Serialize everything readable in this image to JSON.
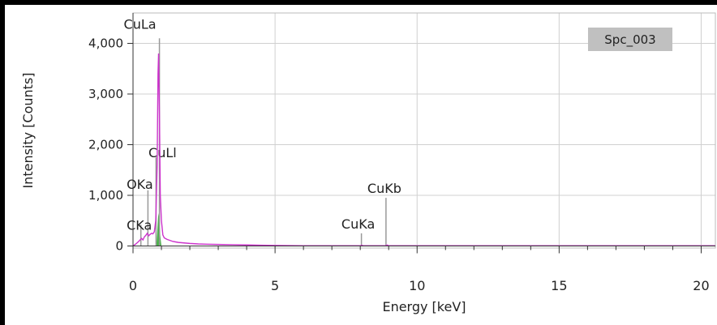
{
  "chart_data": {
    "type": "line",
    "title": "",
    "legend_label": "Spc_003",
    "legend_position": "top-right",
    "xlabel": "Energy [keV]",
    "ylabel": "Intensity [Counts]",
    "xlim": [
      0,
      20.5
    ],
    "ylim": [
      -40,
      4600
    ],
    "grid": true,
    "x_ticks": [
      0,
      5,
      10,
      15,
      20
    ],
    "x_tick_labels": [
      "0",
      "5",
      "10",
      "15",
      "20"
    ],
    "y_ticks": [
      0,
      1000,
      2000,
      3000,
      4000
    ],
    "y_tick_labels": [
      "0",
      "1,000",
      "2,000",
      "3,000",
      "4,000"
    ],
    "colors": {
      "spectrum": "#cc33cc",
      "peak_fill": "#33aa33",
      "marker": "#999999",
      "grid": "#d0d0d0",
      "legend_bg": "#c0c0c0",
      "axis": "#333333"
    },
    "series": [
      {
        "name": "Spc_003",
        "x": [
          0.0,
          0.1,
          0.2,
          0.25,
          0.3,
          0.35,
          0.4,
          0.45,
          0.5,
          0.55,
          0.6,
          0.65,
          0.7,
          0.75,
          0.8,
          0.85,
          0.88,
          0.9,
          0.93,
          0.96,
          1.0,
          1.05,
          1.1,
          1.2,
          1.3,
          1.4,
          1.5,
          1.6,
          1.8,
          2.0,
          2.3,
          2.6,
          3.0,
          3.5,
          4.0,
          4.5,
          5.0,
          6.0,
          8.0,
          8.05,
          8.1,
          8.9,
          8.95,
          9.0,
          10.0,
          12.0,
          15.0,
          18.0,
          20.5
        ],
        "y": [
          0,
          40,
          90,
          120,
          150,
          120,
          180,
          210,
          250,
          200,
          230,
          250,
          240,
          280,
          500,
          1600,
          3400,
          3800,
          2600,
          1000,
          500,
          220,
          160,
          130,
          110,
          90,
          80,
          70,
          60,
          50,
          40,
          35,
          30,
          25,
          20,
          15,
          10,
          5,
          5,
          15,
          5,
          5,
          18,
          5,
          5,
          5,
          5,
          5,
          5
        ]
      },
      {
        "name": "",
        "x": [
          0.82,
          0.85,
          0.88,
          0.9,
          0.93,
          0.96,
          1.0
        ],
        "y": [
          0,
          250,
          550,
          650,
          520,
          200,
          0
        ]
      }
    ],
    "peak_markers": [
      {
        "label": "CuLa",
        "energy": 0.93,
        "height": 4100
      },
      {
        "label": "CuLl",
        "energy": 0.81,
        "height": 1750
      },
      {
        "label": "OKa",
        "energy": 0.525,
        "height": 1100
      },
      {
        "label": "CKa",
        "energy": 0.277,
        "height": 420
      },
      {
        "label": "CuKb",
        "energy": 8.905,
        "height": 950
      },
      {
        "label": "CuKa",
        "energy": 8.04,
        "height": 250
      }
    ]
  }
}
